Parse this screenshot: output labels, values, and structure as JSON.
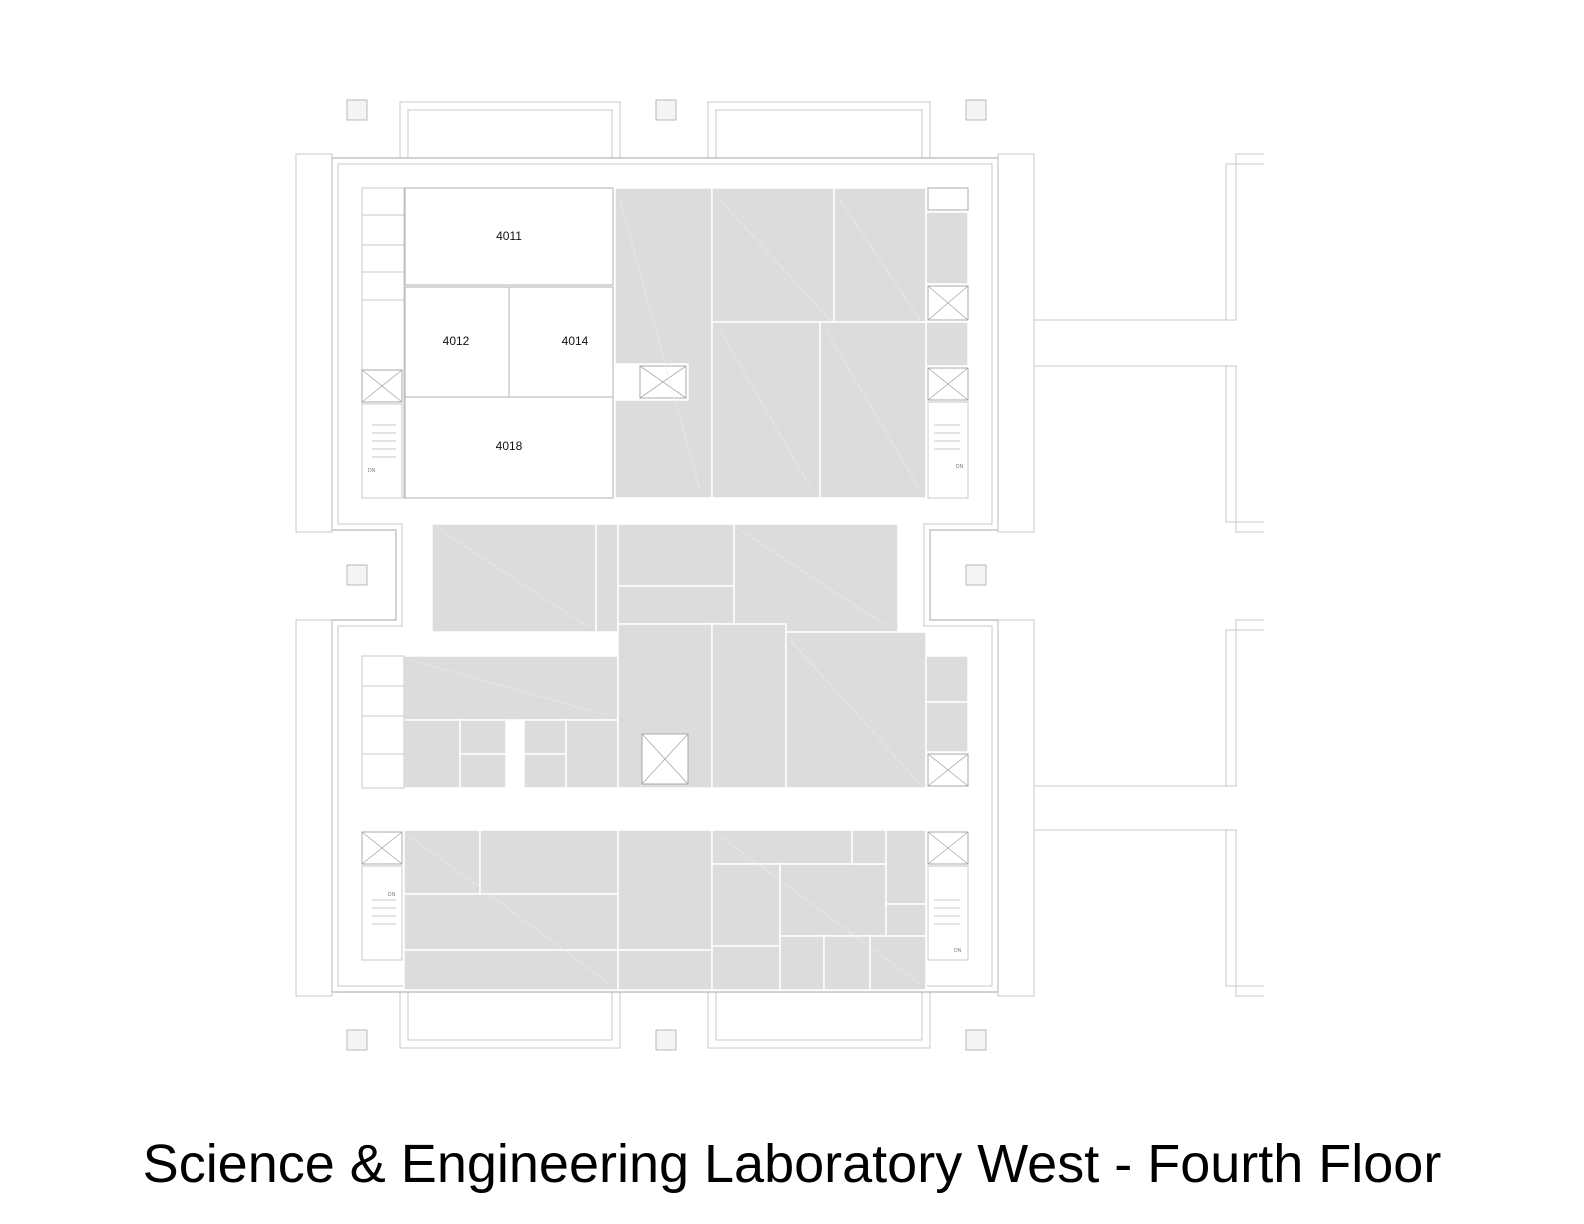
{
  "title": "Science & Engineering Laboratory West - Fourth Floor",
  "rooms": [
    {
      "id": "room-4011",
      "label": "4011"
    },
    {
      "id": "room-4012",
      "label": "4012"
    },
    {
      "id": "room-4014",
      "label": "4014"
    },
    {
      "id": "room-4018",
      "label": "4018"
    }
  ],
  "stair_marks": [
    "DN",
    "DN",
    "DN",
    "DN"
  ],
  "colors": {
    "shaded_area": "#dcdcdc",
    "walls": "#c8c8c8",
    "text": "#000000"
  }
}
